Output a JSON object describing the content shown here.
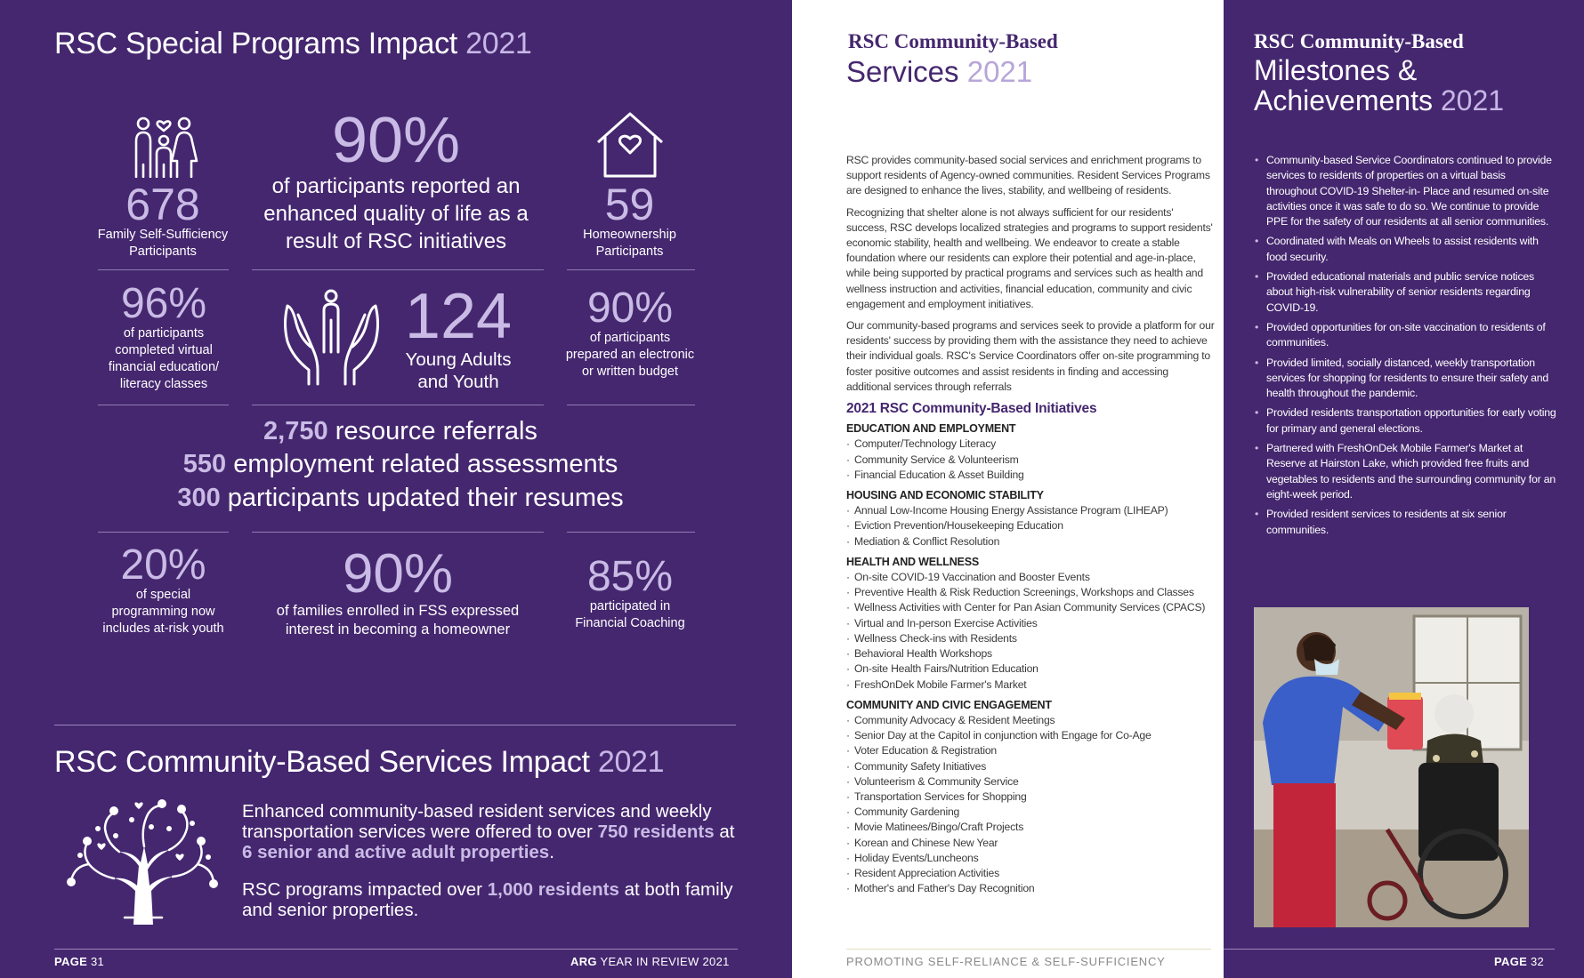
{
  "left": {
    "title_main": "RSC Special Programs Impact",
    "title_year": "2021",
    "stats": {
      "fss_value": "678",
      "fss_label": "Family Self-Sufficiency Participants",
      "quality_value": "90%",
      "quality_label": "of participants reported an enhanced quality of life as a result of RSC initiatives",
      "home_value": "59",
      "home_label": "Homeownership Participants",
      "virtual_value": "96%",
      "virtual_label": "of participants completed virtual financial education/ literacy classes",
      "youth_value": "124",
      "youth_label": "Young Adults and Youth",
      "budget_value": "90%",
      "budget_label": "of participants prepared an electronic or written budget",
      "atrisk_value": "20%",
      "atrisk_label": "of special programming now includes at-risk youth",
      "families_value": "90%",
      "families_label": "of families enrolled in FSS expressed interest in becoming a homeowner",
      "coaching_value": "85%",
      "coaching_label": "participated in Financial Coaching"
    },
    "referrals": [
      {
        "value": "2,750",
        "text": "resource referrals"
      },
      {
        "value": "550",
        "text": "employment related assessments"
      },
      {
        "value": "300",
        "text": "participants updated their resumes"
      }
    ],
    "impact_title_main": "RSC Community-Based Services Impact",
    "impact_title_year": "2021",
    "impact_p1_a": "Enhanced community-based resident services and weekly transportation services were offered to over",
    "impact_p1_b": "750 residents",
    "impact_p1_c": "at",
    "impact_p1_d": "6 senior and active adult properties",
    "impact_p1_e": ".",
    "impact_p2_a": "RSC programs impacted over",
    "impact_p2_b": "1,000 residents",
    "impact_p2_c": "at both family and senior properties.",
    "footer_page_label": "PAGE",
    "footer_page_num": "31",
    "footer_brand": "ARG",
    "footer_right": "YEAR IN REVIEW 2021"
  },
  "middle": {
    "heading_line1": "RSC Community-Based",
    "heading_line2": "Services",
    "heading_year": "2021",
    "paragraphs": [
      "RSC provides community-based social services and enrichment programs to support residents of Agency-owned communities. Resident Services Programs are designed to enhance the lives, stability, and wellbeing of residents.",
      "Recognizing that shelter alone is not always sufficient for our residents' success, RSC develops localized strategies and programs to support residents' economic stability, health and wellbeing. We endeavor to create a stable foundation where our residents can explore their potential and age-in-place, while being supported by practical programs and services such as health and wellness instruction and activities, financial education, community and civic engagement and employment initiatives.",
      "Our community-based programs and services seek to provide a platform for our residents' success by providing them with the assistance they need to achieve their individual goals. RSC's Service Coordinators offer on-site programming to foster positive outcomes and assist residents in finding and accessing additional services through referrals"
    ],
    "initiatives_title": "2021 RSC Community-Based Initiatives",
    "categories": [
      {
        "name": "EDUCATION AND EMPLOYMENT",
        "items": [
          "Computer/Technology Literacy",
          "Community Service & Volunteerism",
          "Financial Education & Asset Building"
        ]
      },
      {
        "name": "HOUSING AND ECONOMIC STABILITY",
        "items": [
          "Annual Low-Income Housing Energy Assistance Program (LIHEAP)",
          "Eviction Prevention/Housekeeping Education",
          "Mediation & Conflict Resolution"
        ]
      },
      {
        "name": "HEALTH AND WELLNESS",
        "items": [
          "On-site COVID-19 Vaccination and Booster Events",
          "Preventive Health & Risk Reduction Screenings, Workshops and Classes",
          "Wellness Activities with Center for Pan Asian Community Services (CPACS)",
          "Virtual and In-person Exercise Activities",
          "Wellness Check-ins with Residents",
          "Behavioral Health Workshops",
          "On-site Health Fairs/Nutrition Education",
          "FreshOnDek Mobile Farmer's Market"
        ]
      },
      {
        "name": "COMMUNITY AND CIVIC ENGAGEMENT",
        "items": [
          "Community Advocacy & Resident Meetings",
          "Senior Day at the Capitol in conjunction with Engage for Co-Age",
          "Voter Education & Registration",
          "Community Safety Initiatives",
          "Volunteerism & Community Service",
          "Transportation Services for Shopping",
          "Community Gardening",
          "Movie Matinees/Bingo/Craft Projects",
          "Korean and Chinese New Year",
          "Holiday Events/Luncheons",
          "Resident Appreciation Activities",
          "Mother's and Father's Day Recognition"
        ]
      }
    ],
    "footer": "PROMOTING SELF-RELIANCE & SELF-SUFFICIENCY"
  },
  "right": {
    "heading_line1": "RSC Community-Based",
    "heading_line2": "Milestones &",
    "heading_line3": "Achievements",
    "heading_year": "2021",
    "bullets": [
      "Community-based Service Coordinators continued to provide services to residents of properties on a virtual basis throughout COVID-19 Shelter-in- Place and resumed on-site activities once it was safe to do so. We continue to provide PPE for the safety of our residents at all senior communities.",
      "Coordinated with Meals on Wheels to assist residents with food security.",
      "Provided educational materials and public service notices about high-risk vulnerability of senior residents regarding COVID-19.",
      "Provided opportunities for on-site vaccination to residents of communities.",
      "Provided limited, socially distanced, weekly transportation services for shopping for residents to ensure their safety and health throughout the pandemic.",
      "Provided residents transportation opportunities for early voting for primary and general elections.",
      "Partnered with FreshOnDek Mobile Farmer's Market at Reserve at Hairston Lake, which provided free fruits and vegetables to residents and the surrounding community for an eight-week period.",
      "Provided resident services to residents at six senior communities."
    ],
    "footer_page_label": "PAGE",
    "footer_page_num": "32"
  }
}
